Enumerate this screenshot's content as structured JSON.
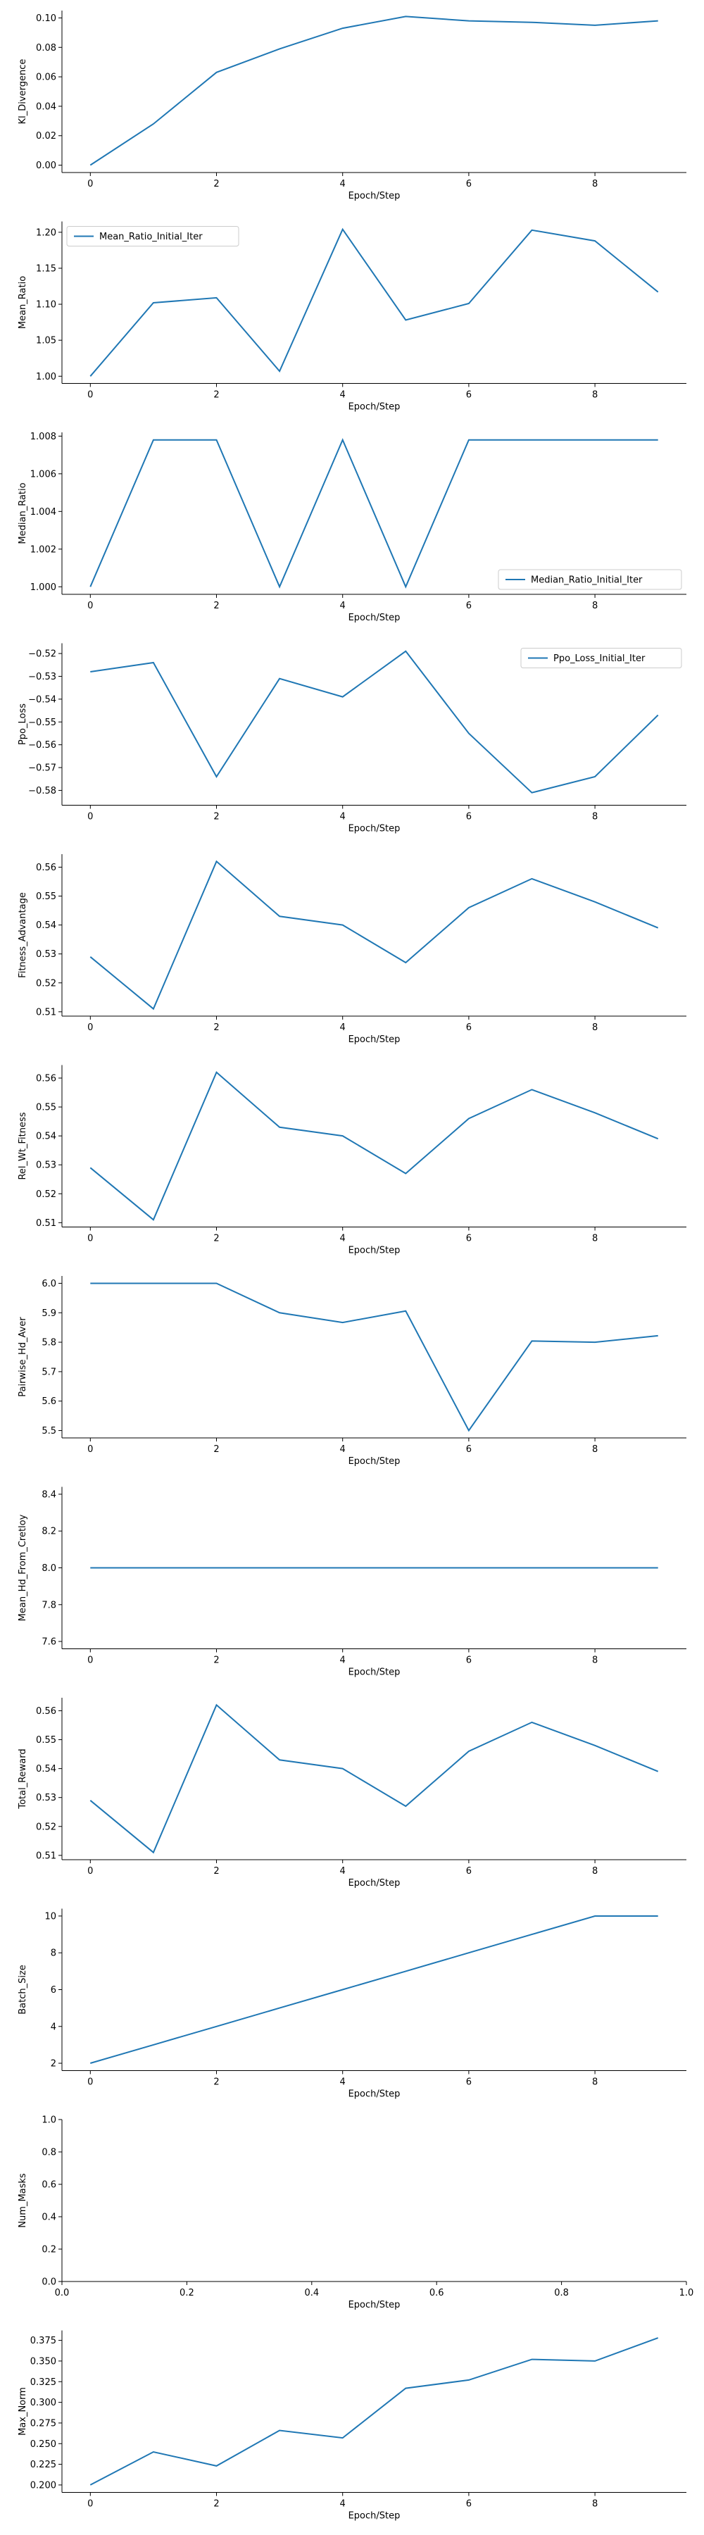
{
  "style": {
    "line_color": "#1f77b4"
  },
  "chart_data": [
    {
      "type": "line",
      "ylabel": "Kl_Divergence",
      "xlabel": "Epoch/Step",
      "x": [
        0,
        1,
        2,
        3,
        4,
        5,
        6,
        7,
        8,
        9
      ],
      "series": [
        {
          "values": [
            0.0,
            0.028,
            0.063,
            0.079,
            0.093,
            0.101,
            0.098,
            0.097,
            0.095,
            0.098
          ]
        }
      ],
      "xlim": [
        -0.45,
        9.45
      ],
      "ylim": [
        -0.005,
        0.105
      ],
      "xticks": [
        0,
        2,
        4,
        6,
        8
      ],
      "xtick_labels": [
        "0",
        "2",
        "4",
        "6",
        "8"
      ],
      "yticks": [
        0.0,
        0.02,
        0.04,
        0.06,
        0.08,
        0.1
      ],
      "ytick_labels": [
        "0.00",
        "0.02",
        "0.04",
        "0.06",
        "0.08",
        "0.10"
      ]
    },
    {
      "type": "line",
      "ylabel": "Mean_Ratio",
      "xlabel": "Epoch/Step",
      "x": [
        0,
        1,
        2,
        3,
        4,
        5,
        6,
        7,
        8,
        9
      ],
      "series": [
        {
          "name": "Mean_Ratio_Initial_Iter",
          "values": [
            1.0,
            1.102,
            1.109,
            1.007,
            1.204,
            1.078,
            1.101,
            1.203,
            1.188,
            1.117
          ]
        }
      ],
      "legend": "upper-left",
      "xlim": [
        -0.45,
        9.45
      ],
      "ylim": [
        0.99,
        1.215
      ],
      "xticks": [
        0,
        2,
        4,
        6,
        8
      ],
      "xtick_labels": [
        "0",
        "2",
        "4",
        "6",
        "8"
      ],
      "yticks": [
        1.0,
        1.05,
        1.1,
        1.15,
        1.2
      ],
      "ytick_labels": [
        "1.00",
        "1.05",
        "1.10",
        "1.15",
        "1.20"
      ]
    },
    {
      "type": "line",
      "ylabel": "Median_Ratio",
      "xlabel": "Epoch/Step",
      "x": [
        0,
        1,
        2,
        3,
        4,
        5,
        6,
        7,
        8,
        9
      ],
      "series": [
        {
          "name": "Median_Ratio_Initial_Iter",
          "values": [
            1.0,
            1.0078,
            1.0078,
            1.0,
            1.0078,
            1.0,
            1.0078,
            1.0078,
            1.0078,
            1.0078
          ]
        }
      ],
      "legend": "lower-right",
      "xlim": [
        -0.45,
        9.45
      ],
      "ylim": [
        0.9996,
        1.0082
      ],
      "xticks": [
        0,
        2,
        4,
        6,
        8
      ],
      "xtick_labels": [
        "0",
        "2",
        "4",
        "6",
        "8"
      ],
      "yticks": [
        1.0,
        1.002,
        1.004,
        1.006,
        1.008
      ],
      "ytick_labels": [
        "1.000",
        "1.002",
        "1.004",
        "1.006",
        "1.008"
      ]
    },
    {
      "type": "line",
      "ylabel": "Ppo_Loss",
      "xlabel": "Epoch/Step",
      "x": [
        0,
        1,
        2,
        3,
        4,
        5,
        6,
        7,
        8,
        9
      ],
      "series": [
        {
          "name": "Ppo_Loss_Initial_Iter",
          "values": [
            -0.528,
            -0.524,
            -0.574,
            -0.531,
            -0.539,
            -0.519,
            -0.555,
            -0.581,
            -0.574,
            -0.547
          ]
        }
      ],
      "legend": "upper-right",
      "xlim": [
        -0.45,
        9.45
      ],
      "ylim": [
        -0.5865,
        -0.5155
      ],
      "xticks": [
        0,
        2,
        4,
        6,
        8
      ],
      "xtick_labels": [
        "0",
        "2",
        "4",
        "6",
        "8"
      ],
      "yticks": [
        -0.52,
        -0.53,
        -0.54,
        -0.55,
        -0.56,
        -0.57,
        -0.58
      ],
      "ytick_labels": [
        "−0.52",
        "−0.53",
        "−0.54",
        "−0.55",
        "−0.56",
        "−0.57",
        "−0.58"
      ]
    },
    {
      "type": "line",
      "ylabel": "Fitness_Advantage",
      "xlabel": "Epoch/Step",
      "x": [
        0,
        1,
        2,
        3,
        4,
        5,
        6,
        7,
        8,
        9
      ],
      "series": [
        {
          "values": [
            0.529,
            0.511,
            0.562,
            0.543,
            0.54,
            0.527,
            0.546,
            0.556,
            0.548,
            0.539
          ]
        }
      ],
      "xlim": [
        -0.45,
        9.45
      ],
      "ylim": [
        0.5085,
        0.5645
      ],
      "xticks": [
        0,
        2,
        4,
        6,
        8
      ],
      "xtick_labels": [
        "0",
        "2",
        "4",
        "6",
        "8"
      ],
      "yticks": [
        0.51,
        0.52,
        0.53,
        0.54,
        0.55,
        0.56
      ],
      "ytick_labels": [
        "0.51",
        "0.52",
        "0.53",
        "0.54",
        "0.55",
        "0.56"
      ]
    },
    {
      "type": "line",
      "ylabel": "Rel_Wt_Fitness",
      "xlabel": "Epoch/Step",
      "x": [
        0,
        1,
        2,
        3,
        4,
        5,
        6,
        7,
        8,
        9
      ],
      "series": [
        {
          "values": [
            0.529,
            0.511,
            0.562,
            0.543,
            0.54,
            0.527,
            0.546,
            0.556,
            0.548,
            0.539
          ]
        }
      ],
      "xlim": [
        -0.45,
        9.45
      ],
      "ylim": [
        0.5085,
        0.5645
      ],
      "xticks": [
        0,
        2,
        4,
        6,
        8
      ],
      "xtick_labels": [
        "0",
        "2",
        "4",
        "6",
        "8"
      ],
      "yticks": [
        0.51,
        0.52,
        0.53,
        0.54,
        0.55,
        0.56
      ],
      "ytick_labels": [
        "0.51",
        "0.52",
        "0.53",
        "0.54",
        "0.55",
        "0.56"
      ]
    },
    {
      "type": "line",
      "ylabel": "Pairwise_Hd_Aver",
      "xlabel": "Epoch/Step",
      "x": [
        0,
        1,
        2,
        3,
        4,
        5,
        6,
        7,
        8,
        9
      ],
      "series": [
        {
          "values": [
            6.0,
            6.0,
            6.0,
            5.9,
            5.867,
            5.906,
            5.5,
            5.804,
            5.8,
            5.822
          ]
        }
      ],
      "xlim": [
        -0.45,
        9.45
      ],
      "ylim": [
        5.475,
        6.025
      ],
      "xticks": [
        0,
        2,
        4,
        6,
        8
      ],
      "xtick_labels": [
        "0",
        "2",
        "4",
        "6",
        "8"
      ],
      "yticks": [
        5.5,
        5.6,
        5.7,
        5.8,
        5.9,
        6.0
      ],
      "ytick_labels": [
        "5.5",
        "5.6",
        "5.7",
        "5.8",
        "5.9",
        "6.0"
      ]
    },
    {
      "type": "line",
      "ylabel": "Mean_Hd_From_Cretloy",
      "xlabel": "Epoch/Step",
      "x": [
        0,
        1,
        2,
        3,
        4,
        5,
        6,
        7,
        8,
        9
      ],
      "series": [
        {
          "values": [
            8.0,
            8.0,
            8.0,
            8.0,
            8.0,
            8.0,
            8.0,
            8.0,
            8.0,
            8.0
          ]
        }
      ],
      "xlim": [
        -0.45,
        9.45
      ],
      "ylim": [
        7.56,
        8.44
      ],
      "xticks": [
        0,
        2,
        4,
        6,
        8
      ],
      "xtick_labels": [
        "0",
        "2",
        "4",
        "6",
        "8"
      ],
      "yticks": [
        7.6,
        7.8,
        8.0,
        8.2,
        8.4
      ],
      "ytick_labels": [
        "7.6",
        "7.8",
        "8.0",
        "8.2",
        "8.4"
      ]
    },
    {
      "type": "line",
      "ylabel": "Total_Reward",
      "xlabel": "Epoch/Step",
      "x": [
        0,
        1,
        2,
        3,
        4,
        5,
        6,
        7,
        8,
        9
      ],
      "series": [
        {
          "values": [
            0.529,
            0.511,
            0.562,
            0.543,
            0.54,
            0.527,
            0.546,
            0.556,
            0.548,
            0.539
          ]
        }
      ],
      "xlim": [
        -0.45,
        9.45
      ],
      "ylim": [
        0.5085,
        0.5645
      ],
      "xticks": [
        0,
        2,
        4,
        6,
        8
      ],
      "xtick_labels": [
        "0",
        "2",
        "4",
        "6",
        "8"
      ],
      "yticks": [
        0.51,
        0.52,
        0.53,
        0.54,
        0.55,
        0.56
      ],
      "ytick_labels": [
        "0.51",
        "0.52",
        "0.53",
        "0.54",
        "0.55",
        "0.56"
      ]
    },
    {
      "type": "line",
      "ylabel": "Batch_Size",
      "xlabel": "Epoch/Step",
      "x": [
        0,
        1,
        2,
        3,
        4,
        5,
        6,
        7,
        8,
        9
      ],
      "series": [
        {
          "values": [
            2,
            3,
            4,
            5,
            6,
            7,
            8,
            9,
            10,
            10
          ]
        }
      ],
      "xlim": [
        -0.45,
        9.45
      ],
      "ylim": [
        1.6,
        10.4
      ],
      "xticks": [
        0,
        2,
        4,
        6,
        8
      ],
      "xtick_labels": [
        "0",
        "2",
        "4",
        "6",
        "8"
      ],
      "yticks": [
        2,
        4,
        6,
        8,
        10
      ],
      "ytick_labels": [
        "2",
        "4",
        "6",
        "8",
        "10"
      ]
    },
    {
      "type": "line",
      "ylabel": "Num_Masks",
      "xlabel": "Epoch/Step",
      "x": [],
      "series": [
        {
          "values": []
        }
      ],
      "xlim": [
        0.0,
        1.0
      ],
      "ylim": [
        0.0,
        1.0
      ],
      "xticks": [
        0.0,
        0.2,
        0.4,
        0.6,
        0.8,
        1.0
      ],
      "xtick_labels": [
        "0.0",
        "0.2",
        "0.4",
        "0.6",
        "0.8",
        "1.0"
      ],
      "yticks": [
        0.0,
        0.2,
        0.4,
        0.6,
        0.8,
        1.0
      ],
      "ytick_labels": [
        "0.0",
        "0.2",
        "0.4",
        "0.6",
        "0.8",
        "1.0"
      ]
    },
    {
      "type": "line",
      "ylabel": "Max_Norm",
      "xlabel": "Epoch/Step",
      "x": [
        0,
        1,
        2,
        3,
        4,
        5,
        6,
        7,
        8,
        9
      ],
      "series": [
        {
          "values": [
            0.2,
            0.24,
            0.223,
            0.266,
            0.257,
            0.317,
            0.327,
            0.352,
            0.35,
            0.378
          ]
        }
      ],
      "xlim": [
        -0.45,
        9.45
      ],
      "ylim": [
        0.191,
        0.387
      ],
      "xticks": [
        0,
        2,
        4,
        6,
        8
      ],
      "xtick_labels": [
        "0",
        "2",
        "4",
        "6",
        "8"
      ],
      "yticks": [
        0.2,
        0.225,
        0.25,
        0.275,
        0.3,
        0.325,
        0.35,
        0.375
      ],
      "ytick_labels": [
        "0.200",
        "0.225",
        "0.250",
        "0.275",
        "0.300",
        "0.325",
        "0.350",
        "0.375"
      ]
    }
  ]
}
